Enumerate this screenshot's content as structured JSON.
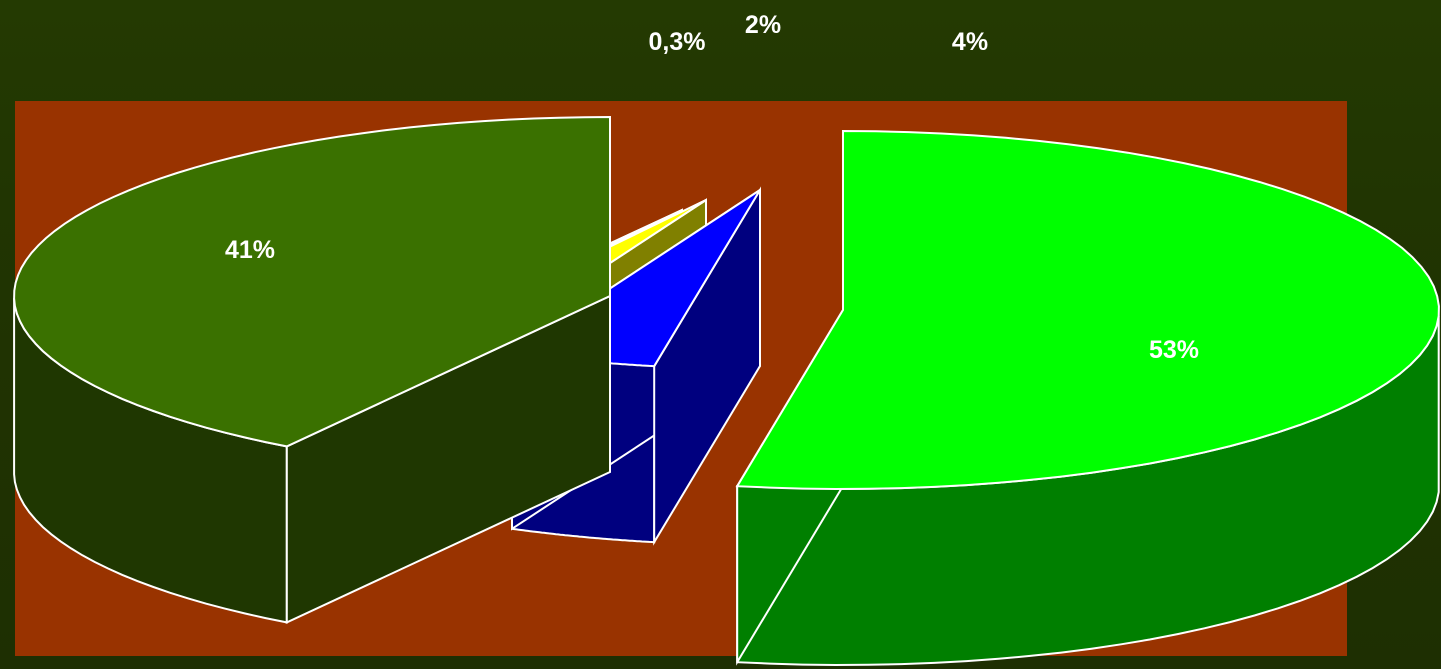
{
  "chart_data": {
    "type": "pie",
    "title": "",
    "labels": [
      "41%",
      "0,3%",
      "2%",
      "4%",
      "53%"
    ],
    "values": [
      41,
      0.3,
      2,
      4,
      53
    ],
    "colors": {
      "top": [
        "#3a7100",
        "#16dede",
        "#ffff00",
        "#0000ff",
        "#00ff00"
      ],
      "side": [
        "#1f3701",
        "#0b6e6e",
        "#808000",
        "#00007f",
        "#007f00"
      ],
      "plot_area": "#993300",
      "outline": "#ffffff"
    },
    "style": "3d-exploded",
    "legend": "none",
    "grid": false
  }
}
